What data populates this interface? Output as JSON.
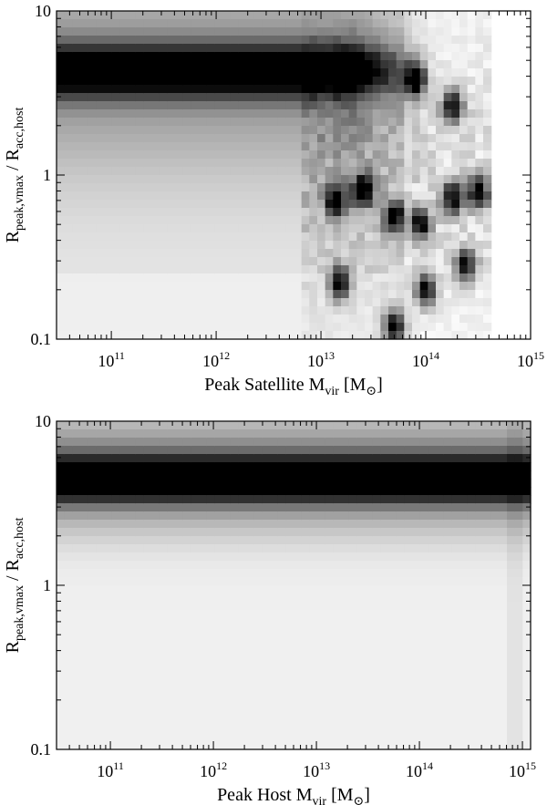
{
  "chart_data": [
    {
      "type": "heatmap",
      "title": "",
      "xlabel": {
        "prefix": "Peak Satellite M",
        "sub": "vir",
        "unit_open": " [M",
        "unit_sub": "⊙",
        "unit_close": "]"
      },
      "ylabel": {
        "a": "R",
        "a_sub": "peak,vmax",
        "mid": " / R",
        "b_sub": "acc,host"
      },
      "xscale": "log",
      "yscale": "log",
      "xlim": [
        30000000000.0,
        1000000000000000.0
      ],
      "ylim": [
        0.1,
        10
      ],
      "xticks": [
        {
          "base": "10",
          "exp": "11",
          "value": 100000000000.0
        },
        {
          "base": "10",
          "exp": "12",
          "value": 1000000000000.0
        },
        {
          "base": "10",
          "exp": "13",
          "value": 10000000000000.0
        },
        {
          "base": "10",
          "exp": "14",
          "value": 100000000000000.0
        },
        {
          "base": "10",
          "exp": "15",
          "value": 1000000000000000.0
        }
      ],
      "yticks": [
        {
          "label": "0.1",
          "value": 0.1
        },
        {
          "label": "1",
          "value": 1
        },
        {
          "label": "10",
          "value": 10
        }
      ],
      "colormap": "white-to-black",
      "description_of_density": {
        "band_center_ratio": 4.3,
        "band_fades_above_mass": 20000000000000.0,
        "sparse_region_mass_range": [
          10000000000000.0,
          300000000000000.0
        ],
        "dense_clumps": [
          {
            "mass": 180000000000000.0,
            "ratio": 2.6
          },
          {
            "mass": 320000000000000.0,
            "ratio": 0.78
          },
          {
            "mass": 180000000000000.0,
            "ratio": 0.72
          },
          {
            "mass": 240000000000000.0,
            "ratio": 0.28
          },
          {
            "mass": 100000000000000.0,
            "ratio": 0.2
          },
          {
            "mass": 50000000000000.0,
            "ratio": 0.12
          },
          {
            "mass": 14000000000000.0,
            "ratio": 0.7
          },
          {
            "mass": 15000000000000.0,
            "ratio": 0.22
          },
          {
            "mass": 80000000000000.0,
            "ratio": 3.8
          },
          {
            "mass": 50000000000000.0,
            "ratio": 0.55
          },
          {
            "mass": 90000000000000.0,
            "ratio": 0.5
          },
          {
            "mass": 25000000000000.0,
            "ratio": 0.8
          }
        ]
      }
    },
    {
      "type": "heatmap",
      "title": "",
      "xlabel": {
        "prefix": "Peak Host M",
        "sub": "vir",
        "unit_open": " [M",
        "unit_sub": "⊙",
        "unit_close": "]"
      },
      "ylabel": {
        "a": "R",
        "a_sub": "peak,vmax",
        "mid": " / R",
        "b_sub": "acc,host"
      },
      "xscale": "log",
      "yscale": "log",
      "xlim": [
        30000000000.0,
        1200000000000000.0
      ],
      "ylim": [
        0.1,
        10
      ],
      "xticks": [
        {
          "base": "10",
          "exp": "11",
          "value": 100000000000.0
        },
        {
          "base": "10",
          "exp": "12",
          "value": 1000000000000.0
        },
        {
          "base": "10",
          "exp": "13",
          "value": 10000000000000.0
        },
        {
          "base": "10",
          "exp": "14",
          "value": 100000000000000.0
        },
        {
          "base": "10",
          "exp": "15",
          "value": 1000000000000000.0
        }
      ],
      "yticks": [
        {
          "label": "0.1",
          "value": 0.1
        },
        {
          "label": "1",
          "value": 1
        },
        {
          "label": "10",
          "value": 10
        }
      ],
      "colormap": "white-to-black",
      "description_of_density": {
        "band_center_ratio": 4.4,
        "band_extends_full_mass_range": true,
        "faint_feature_near_mass": 800000000000000.0
      }
    }
  ]
}
